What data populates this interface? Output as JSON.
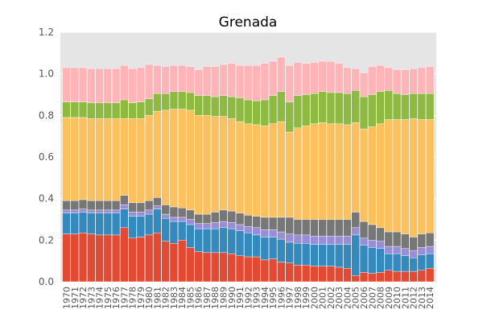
{
  "chart_data": {
    "type": "bar",
    "stacked": true,
    "title": "Grenada",
    "xlabel": "",
    "ylabel": "",
    "ylim": [
      0,
      1.2
    ],
    "yticks": [
      "0.0",
      "0.2",
      "0.4",
      "0.6",
      "0.8",
      "1.0",
      "1.2"
    ],
    "grid": true,
    "legend": "none",
    "colors": {
      "plot_background": "#e5e5e5",
      "grid": "#ffffff",
      "series": [
        "#e24a33",
        "#348abd",
        "#988ed5",
        "#777777",
        "#fbc15e",
        "#8eba42",
        "#ffb5b8"
      ]
    },
    "categories": [
      "1970",
      "1971",
      "1972",
      "1973",
      "1974",
      "1975",
      "1976",
      "1977",
      "1978",
      "1979",
      "1980",
      "1981",
      "1982",
      "1983",
      "1984",
      "1985",
      "1986",
      "1987",
      "1988",
      "1989",
      "1990",
      "1991",
      "1992",
      "1993",
      "1994",
      "1995",
      "1996",
      "1997",
      "1998",
      "1999",
      "2000",
      "2001",
      "2002",
      "2003",
      "2004",
      "2005",
      "2006",
      "2007",
      "2008",
      "2009",
      "2010",
      "2011",
      "2012",
      "2013",
      "2014"
    ],
    "series": [
      {
        "values": [
          0.23,
          0.23,
          0.235,
          0.23,
          0.225,
          0.225,
          0.225,
          0.26,
          0.21,
          0.215,
          0.225,
          0.235,
          0.195,
          0.185,
          0.2,
          0.165,
          0.145,
          0.14,
          0.14,
          0.14,
          0.135,
          0.125,
          0.12,
          0.12,
          0.105,
          0.11,
          0.095,
          0.09,
          0.08,
          0.08,
          0.075,
          0.075,
          0.075,
          0.07,
          0.065,
          0.03,
          0.045,
          0.04,
          0.045,
          0.055,
          0.05,
          0.05,
          0.05,
          0.055,
          0.065
        ]
      },
      {
        "values": [
          0.1,
          0.1,
          0.1,
          0.1,
          0.105,
          0.105,
          0.105,
          0.09,
          0.105,
          0.1,
          0.1,
          0.115,
          0.11,
          0.105,
          0.09,
          0.11,
          0.11,
          0.115,
          0.115,
          0.12,
          0.12,
          0.12,
          0.115,
          0.105,
          0.11,
          0.105,
          0.11,
          0.1,
          0.105,
          0.105,
          0.105,
          0.105,
          0.105,
          0.11,
          0.115,
          0.195,
          0.13,
          0.125,
          0.115,
          0.08,
          0.085,
          0.075,
          0.065,
          0.075,
          0.07
        ]
      },
      {
        "values": [
          0.015,
          0.015,
          0.015,
          0.015,
          0.015,
          0.015,
          0.015,
          0.02,
          0.02,
          0.02,
          0.02,
          0.015,
          0.02,
          0.02,
          0.02,
          0.025,
          0.025,
          0.025,
          0.03,
          0.03,
          0.03,
          0.03,
          0.03,
          0.035,
          0.035,
          0.035,
          0.035,
          0.04,
          0.04,
          0.04,
          0.04,
          0.04,
          0.04,
          0.04,
          0.04,
          0.035,
          0.035,
          0.035,
          0.035,
          0.035,
          0.035,
          0.035,
          0.035,
          0.035,
          0.035
        ]
      },
      {
        "values": [
          0.045,
          0.045,
          0.045,
          0.045,
          0.045,
          0.045,
          0.045,
          0.045,
          0.045,
          0.045,
          0.045,
          0.04,
          0.045,
          0.05,
          0.045,
          0.045,
          0.045,
          0.045,
          0.05,
          0.055,
          0.055,
          0.055,
          0.055,
          0.055,
          0.06,
          0.06,
          0.07,
          0.08,
          0.075,
          0.075,
          0.08,
          0.08,
          0.08,
          0.08,
          0.08,
          0.075,
          0.08,
          0.075,
          0.065,
          0.07,
          0.07,
          0.07,
          0.065,
          0.065,
          0.065
        ]
      },
      {
        "values": [
          0.4,
          0.4,
          0.395,
          0.395,
          0.395,
          0.395,
          0.395,
          0.37,
          0.405,
          0.405,
          0.41,
          0.415,
          0.455,
          0.47,
          0.475,
          0.48,
          0.475,
          0.475,
          0.46,
          0.45,
          0.445,
          0.44,
          0.44,
          0.44,
          0.44,
          0.45,
          0.46,
          0.41,
          0.44,
          0.45,
          0.46,
          0.465,
          0.46,
          0.46,
          0.455,
          0.43,
          0.445,
          0.47,
          0.5,
          0.54,
          0.54,
          0.55,
          0.57,
          0.55,
          0.545
        ]
      },
      {
        "values": [
          0.075,
          0.075,
          0.075,
          0.075,
          0.075,
          0.075,
          0.075,
          0.09,
          0.075,
          0.08,
          0.08,
          0.085,
          0.08,
          0.085,
          0.085,
          0.085,
          0.095,
          0.095,
          0.095,
          0.1,
          0.105,
          0.115,
          0.115,
          0.115,
          0.125,
          0.135,
          0.145,
          0.145,
          0.155,
          0.15,
          0.145,
          0.15,
          0.15,
          0.15,
          0.15,
          0.155,
          0.155,
          0.155,
          0.155,
          0.14,
          0.125,
          0.12,
          0.12,
          0.125,
          0.125
        ]
      },
      {
        "values": [
          0.165,
          0.165,
          0.165,
          0.165,
          0.165,
          0.165,
          0.165,
          0.165,
          0.165,
          0.165,
          0.165,
          0.135,
          0.13,
          0.125,
          0.125,
          0.125,
          0.125,
          0.14,
          0.145,
          0.15,
          0.16,
          0.155,
          0.165,
          0.17,
          0.175,
          0.165,
          0.165,
          0.175,
          0.16,
          0.15,
          0.15,
          0.145,
          0.15,
          0.14,
          0.125,
          0.105,
          0.115,
          0.135,
          0.125,
          0.11,
          0.115,
          0.12,
          0.12,
          0.125,
          0.13
        ]
      }
    ]
  }
}
